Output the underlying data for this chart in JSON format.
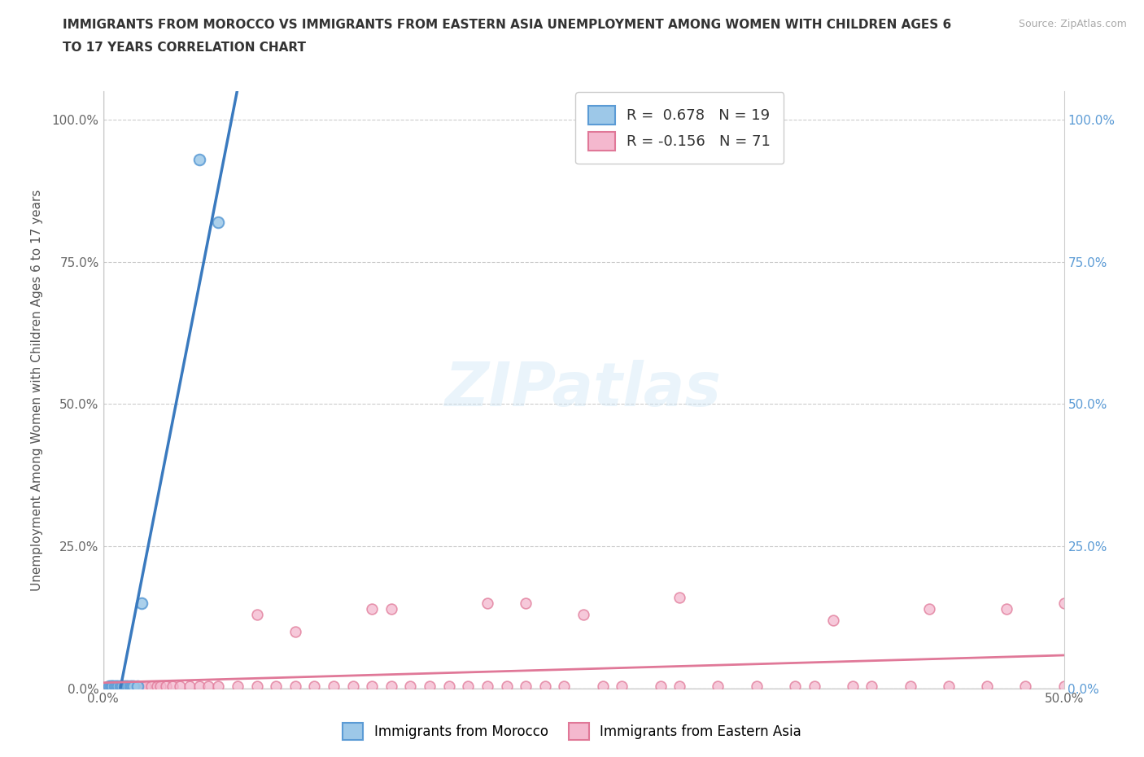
{
  "title_line1": "IMMIGRANTS FROM MOROCCO VS IMMIGRANTS FROM EASTERN ASIA UNEMPLOYMENT AMONG WOMEN WITH CHILDREN AGES 6",
  "title_line2": "TO 17 YEARS CORRELATION CHART",
  "source": "Source: ZipAtlas.com",
  "ylabel": "Unemployment Among Women with Children Ages 6 to 17 years",
  "xlim": [
    0.0,
    0.5
  ],
  "ylim": [
    0.0,
    1.05
  ],
  "x_ticks": [
    0.0,
    0.1,
    0.2,
    0.3,
    0.4,
    0.5
  ],
  "x_tick_labels": [
    "0.0%",
    "",
    "",
    "",
    "",
    "50.0%"
  ],
  "y_ticks": [
    0.0,
    0.25,
    0.5,
    0.75,
    1.0
  ],
  "y_tick_labels": [
    "0.0%",
    "25.0%",
    "50.0%",
    "75.0%",
    "100.0%"
  ],
  "morocco_fill": "#9dc8e8",
  "morocco_edge": "#5b9bd5",
  "ea_fill": "#f4b8ce",
  "ea_edge": "#e07898",
  "morocco_line_color": "#3a7abf",
  "ea_line_color": "#e07898",
  "r_morocco": 0.678,
  "n_morocco": 19,
  "r_ea": -0.156,
  "n_ea": 71,
  "morocco_x": [
    0.003,
    0.004,
    0.005,
    0.005,
    0.006,
    0.007,
    0.008,
    0.009,
    0.01,
    0.011,
    0.012,
    0.013,
    0.014,
    0.015,
    0.016,
    0.018,
    0.02,
    0.05,
    0.06
  ],
  "morocco_y": [
    0.005,
    0.005,
    0.005,
    0.005,
    0.005,
    0.005,
    0.005,
    0.005,
    0.005,
    0.005,
    0.005,
    0.005,
    0.005,
    0.005,
    0.005,
    0.005,
    0.15,
    0.93,
    0.82
  ],
  "ea_x": [
    0.003,
    0.004,
    0.005,
    0.006,
    0.007,
    0.008,
    0.009,
    0.01,
    0.011,
    0.012,
    0.013,
    0.015,
    0.016,
    0.018,
    0.02,
    0.022,
    0.025,
    0.028,
    0.03,
    0.033,
    0.036,
    0.04,
    0.045,
    0.05,
    0.055,
    0.06,
    0.07,
    0.08,
    0.09,
    0.1,
    0.11,
    0.12,
    0.13,
    0.14,
    0.15,
    0.16,
    0.17,
    0.18,
    0.19,
    0.2,
    0.21,
    0.22,
    0.23,
    0.24,
    0.26,
    0.27,
    0.29,
    0.3,
    0.32,
    0.34,
    0.36,
    0.37,
    0.39,
    0.4,
    0.42,
    0.44,
    0.46,
    0.48,
    0.5,
    0.1,
    0.15,
    0.2,
    0.25,
    0.3,
    0.38,
    0.43,
    0.47,
    0.5,
    0.08,
    0.14,
    0.22
  ],
  "ea_y": [
    0.005,
    0.005,
    0.005,
    0.005,
    0.005,
    0.005,
    0.005,
    0.005,
    0.005,
    0.005,
    0.005,
    0.005,
    0.005,
    0.005,
    0.005,
    0.005,
    0.005,
    0.005,
    0.005,
    0.005,
    0.005,
    0.005,
    0.005,
    0.005,
    0.005,
    0.005,
    0.005,
    0.005,
    0.005,
    0.005,
    0.005,
    0.005,
    0.005,
    0.005,
    0.005,
    0.005,
    0.005,
    0.005,
    0.005,
    0.005,
    0.005,
    0.005,
    0.005,
    0.005,
    0.005,
    0.005,
    0.005,
    0.005,
    0.005,
    0.005,
    0.005,
    0.005,
    0.005,
    0.005,
    0.005,
    0.005,
    0.005,
    0.005,
    0.005,
    0.1,
    0.14,
    0.15,
    0.13,
    0.16,
    0.12,
    0.14,
    0.14,
    0.15,
    0.13,
    0.14,
    0.15
  ]
}
